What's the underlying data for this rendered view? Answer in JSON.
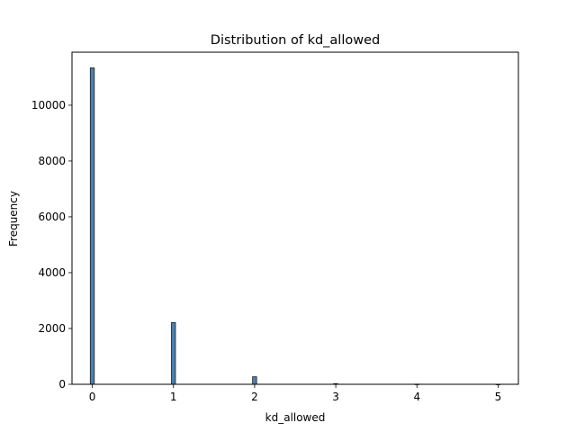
{
  "chart_data": {
    "type": "bar",
    "title": "Distribution of kd_allowed",
    "xlabel": "kd_allowed",
    "ylabel": "Frequency",
    "x": [
      0,
      1,
      2,
      3,
      4,
      5
    ],
    "values": [
      11340,
      2215,
      270,
      25,
      6,
      2
    ],
    "xlim": [
      -0.25,
      5.25
    ],
    "ylim": [
      0,
      11900
    ],
    "xticks": [
      0,
      1,
      2,
      3,
      4,
      5
    ],
    "yticks": [
      0,
      2000,
      4000,
      6000,
      8000,
      10000
    ],
    "grid": false,
    "legend": false,
    "colors": {
      "bar_fill": "#4a80ad",
      "bar_edge": "#1f1f1f"
    }
  }
}
